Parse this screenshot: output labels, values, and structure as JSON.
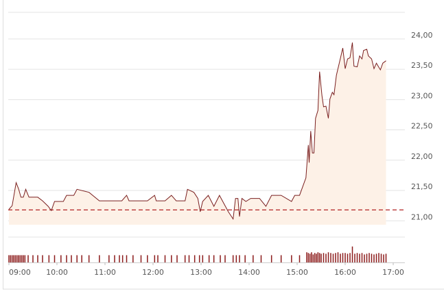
{
  "chart_data": {
    "type": "line",
    "xlim": [
      "09:00",
      "17:00"
    ],
    "xticks": [
      "09:00",
      "10:00",
      "11:00",
      "12:00",
      "13:00",
      "14:00",
      "15:00",
      "16:00",
      "17:00"
    ],
    "ylim": [
      20.8,
      24.45
    ],
    "yticks": [
      {
        "value": 21,
        "label": "21,00"
      },
      {
        "value": 21.5,
        "label": "21,50"
      },
      {
        "value": 22,
        "label": "22,00"
      },
      {
        "value": 22.5,
        "label": "22,50"
      },
      {
        "value": 23,
        "label": "23,00"
      },
      {
        "value": 23.5,
        "label": "23,50"
      },
      {
        "value": 24,
        "label": "24,00"
      }
    ],
    "grid": true,
    "reference_line": 21.18,
    "reference_color": "#b22222",
    "series": [
      {
        "color": "#7a1f1f",
        "fill": "#fdf1e7",
        "x": [
          "09:00",
          "09:04",
          "09:09",
          "09:12",
          "09:15",
          "09:18",
          "09:21",
          "09:25",
          "09:36",
          "09:42",
          "09:49",
          "09:53",
          "09:57",
          "10:08",
          "10:12",
          "10:21",
          "10:25",
          "10:40",
          "10:53",
          "11:21",
          "11:27",
          "11:30",
          "11:53",
          "12:02",
          "12:04",
          "12:15",
          "12:23",
          "12:29",
          "12:40",
          "12:43",
          "12:51",
          "12:56",
          "12:59",
          "13:02",
          "13:09",
          "13:16",
          "13:23",
          "13:34",
          "13:40",
          "13:43",
          "13:46",
          "13:48",
          "13:51",
          "13:56",
          "14:02",
          "14:13",
          "14:21",
          "14:28",
          "14:40",
          "14:53",
          "14:57",
          "15:03",
          "15:11",
          "15:14",
          "15:15",
          "15:17",
          "15:19",
          "15:21",
          "15:23",
          "15:26",
          "15:28",
          "15:31",
          "15:33",
          "15:36",
          "15:39",
          "15:41",
          "15:44",
          "15:46",
          "15:49",
          "15:53",
          "15:57",
          "16:00",
          "16:03",
          "16:06",
          "16:09",
          "16:11",
          "16:15",
          "16:18",
          "16:21",
          "16:23",
          "16:27",
          "16:29",
          "16:33",
          "16:36",
          "16:39",
          "16:44",
          "16:47",
          "16:51"
        ],
        "values": [
          21.19,
          21.25,
          21.63,
          21.53,
          21.39,
          21.39,
          21.52,
          21.39,
          21.39,
          21.33,
          21.24,
          21.17,
          21.32,
          21.32,
          21.42,
          21.42,
          21.52,
          21.47,
          21.33,
          21.33,
          21.42,
          21.33,
          21.33,
          21.42,
          21.33,
          21.33,
          21.42,
          21.33,
          21.33,
          21.52,
          21.47,
          21.37,
          21.15,
          21.32,
          21.42,
          21.24,
          21.42,
          21.15,
          21.03,
          21.37,
          21.37,
          21.07,
          21.37,
          21.32,
          21.37,
          21.37,
          21.24,
          21.42,
          21.42,
          21.32,
          21.42,
          21.42,
          21.71,
          22.25,
          21.96,
          22.48,
          22.12,
          22.12,
          22.69,
          22.82,
          23.46,
          23.06,
          22.88,
          22.89,
          22.69,
          23.01,
          23.12,
          23.08,
          23.4,
          23.62,
          23.85,
          23.51,
          23.67,
          23.69,
          23.94,
          23.55,
          23.54,
          23.72,
          23.67,
          23.81,
          23.83,
          23.72,
          23.67,
          23.51,
          23.6,
          23.49,
          23.6,
          23.64
        ]
      }
    ],
    "volume": {
      "color": "#8b1a1a",
      "vlim": [
        0,
        3.5
      ],
      "x": [
        "09:00",
        "09:02",
        "09:04",
        "09:06",
        "09:08",
        "09:10",
        "09:12",
        "09:14",
        "09:16",
        "09:18",
        "09:20",
        "09:24",
        "09:30",
        "09:36",
        "09:42",
        "09:50",
        "09:57",
        "10:05",
        "10:12",
        "10:18",
        "10:25",
        "10:31",
        "10:40",
        "10:53",
        "11:05",
        "11:12",
        "11:18",
        "11:22",
        "11:27",
        "11:35",
        "11:45",
        "11:53",
        "12:02",
        "12:06",
        "12:15",
        "12:23",
        "12:30",
        "12:40",
        "12:45",
        "12:52",
        "12:58",
        "13:02",
        "13:10",
        "13:16",
        "13:24",
        "13:30",
        "13:40",
        "13:44",
        "13:48",
        "13:55",
        "14:05",
        "14:15",
        "14:28",
        "14:40",
        "14:53",
        "15:03",
        "15:12",
        "15:14",
        "15:16",
        "15:18",
        "15:20",
        "15:22",
        "15:24",
        "15:26",
        "15:28",
        "15:30",
        "15:33",
        "15:36",
        "15:39",
        "15:42",
        "15:45",
        "15:48",
        "15:51",
        "15:54",
        "15:57",
        "16:00",
        "16:03",
        "16:06",
        "16:09",
        "16:12",
        "16:15",
        "16:18",
        "16:21",
        "16:24",
        "16:27",
        "16:30",
        "16:33",
        "16:36",
        "16:39",
        "16:42",
        "16:45",
        "16:48",
        "16:51"
      ],
      "values": [
        1,
        1,
        1,
        1,
        1,
        1,
        1,
        1,
        1,
        1,
        1,
        1,
        1,
        1,
        1,
        1,
        1,
        1,
        1,
        1,
        1,
        1,
        1,
        1,
        1,
        1,
        1,
        1,
        1,
        1,
        1,
        1,
        1,
        1,
        1,
        1,
        1,
        1,
        1,
        1,
        1,
        1,
        1,
        1,
        1,
        1,
        1,
        1,
        1,
        1,
        1,
        1,
        1,
        1,
        1,
        1,
        1.4,
        1.3,
        1.2,
        1.4,
        1.1,
        1.3,
        1.2,
        1.4,
        1.3,
        1.2,
        1.3,
        1.2,
        1.4,
        1.3,
        1.2,
        1.3,
        1.4,
        1.2,
        1.3,
        1.3,
        1.2,
        1.3,
        2.2,
        1.2,
        1.3,
        1.2,
        1.3,
        1.1,
        1.2,
        1.3,
        1.2,
        1.1,
        1.2,
        1.3,
        1.2,
        1.1,
        1.2
      ]
    }
  }
}
